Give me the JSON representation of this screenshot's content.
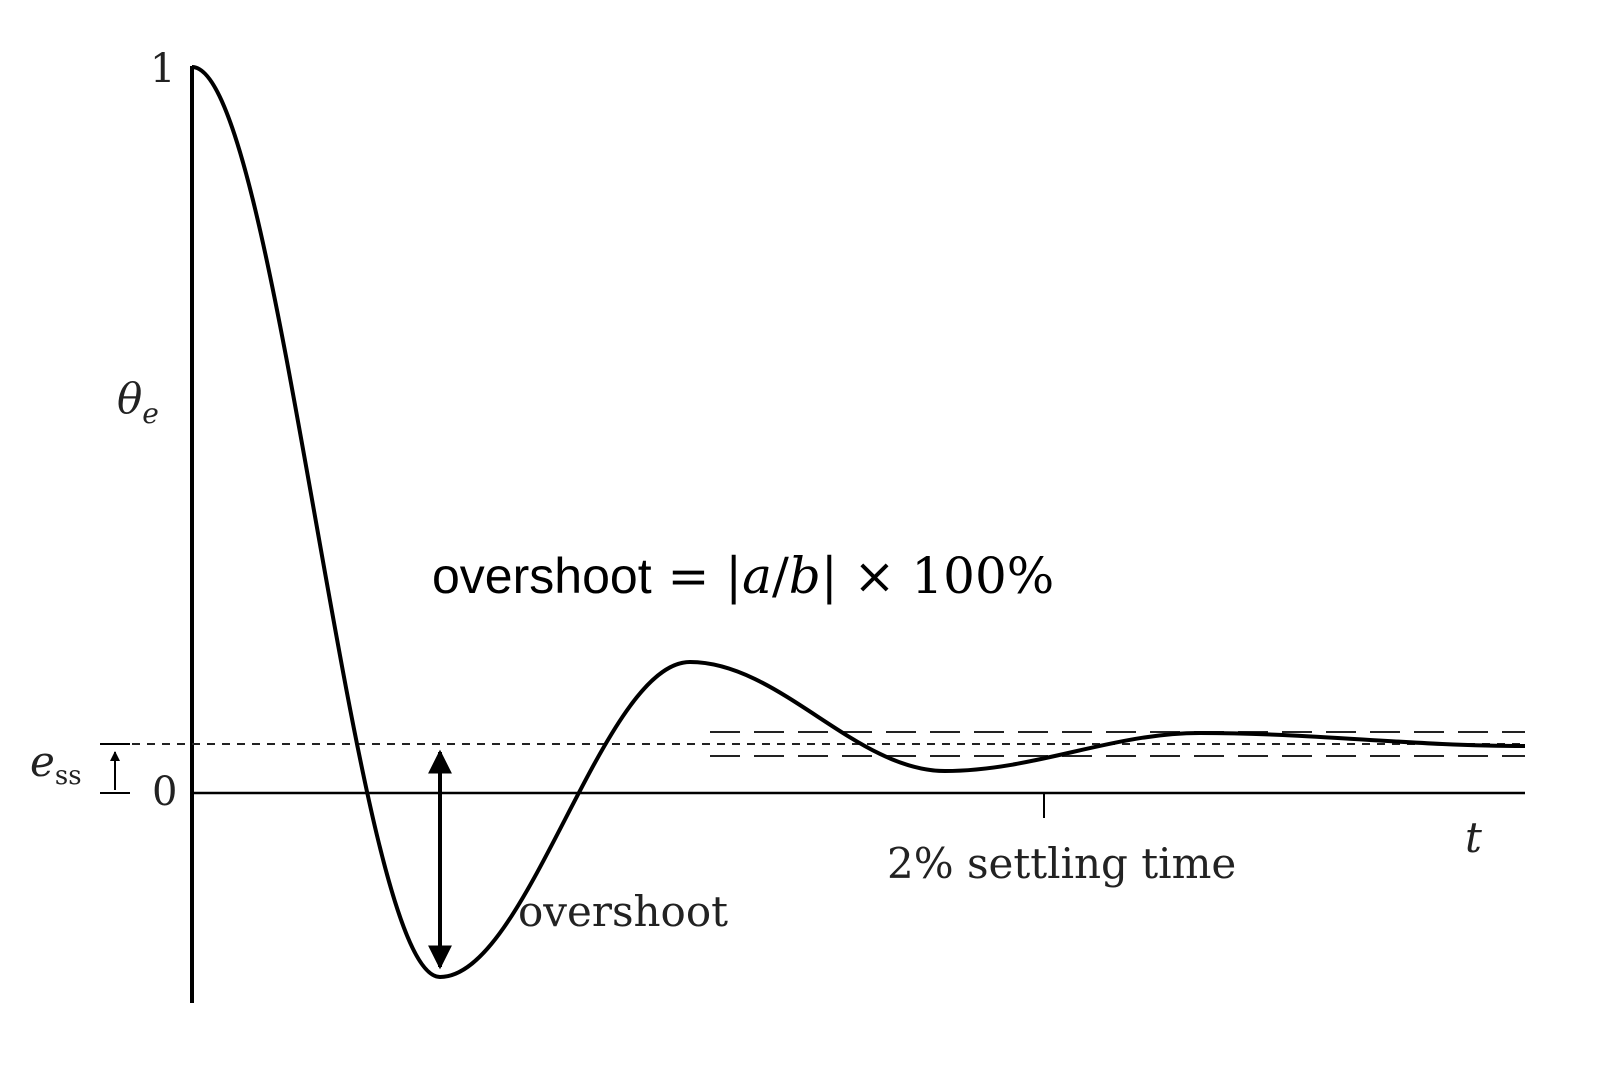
{
  "figure": {
    "y_axis": {
      "tick_top": "1",
      "tick_zero": "0",
      "label_main": "θ",
      "label_sub": "e"
    },
    "x_axis": {
      "label": "t"
    },
    "ess": {
      "main": "e",
      "sub": "ss"
    },
    "annotations": {
      "overshoot": "overshoot",
      "settling": "2% settling time"
    },
    "formula": {
      "word": "overshoot",
      "equals": " = |",
      "a": "a",
      "slash": "/",
      "b": "b",
      "tail": "| × 100%"
    }
  },
  "chart_data": {
    "type": "line",
    "curve": "damped oscillation of θe over t",
    "y_ticks": [
      "0",
      "1"
    ],
    "ylim": [
      -0.26,
      1.0
    ],
    "steady_state_error": 0.067,
    "settling_band": "±2%",
    "colors": {
      "curve": "#000000",
      "axes": "#000000",
      "dashed": "#222222"
    }
  }
}
